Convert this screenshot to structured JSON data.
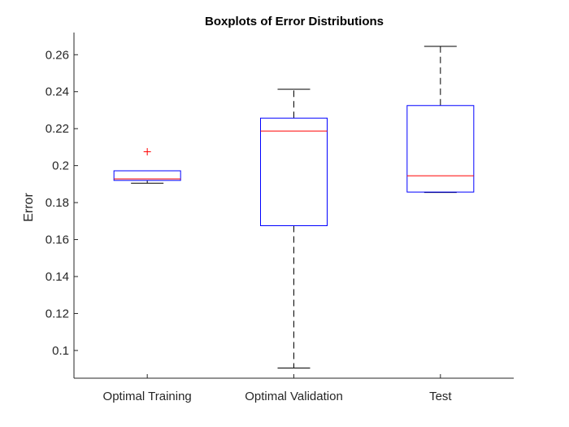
{
  "chart_data": {
    "type": "boxplot",
    "title": "Boxplots of Error Distributions",
    "xlabel": "",
    "ylabel": "Error",
    "ylim": [
      0.085,
      0.272
    ],
    "yticks": [
      0.1,
      0.12,
      0.14,
      0.16,
      0.18,
      0.2,
      0.22,
      0.24,
      0.26
    ],
    "ytick_labels": [
      "0.1",
      "0.12",
      "0.14",
      "0.16",
      "0.18",
      "0.2",
      "0.22",
      "0.24",
      "0.26"
    ],
    "grid": false,
    "categories": [
      "Optimal Training",
      "Optimal Validation",
      "Test"
    ],
    "boxes": [
      {
        "category": "Optimal Training",
        "whisker_low": 0.1905,
        "q1": 0.192,
        "median": 0.1928,
        "q3": 0.1972,
        "whisker_high": 0.1972,
        "outliers": [
          0.2075
        ]
      },
      {
        "category": "Optimal Validation",
        "whisker_low": 0.0905,
        "q1": 0.1675,
        "median": 0.2187,
        "q3": 0.2257,
        "whisker_high": 0.2413,
        "outliers": []
      },
      {
        "category": "Test",
        "whisker_low": 0.1855,
        "q1": 0.1857,
        "median": 0.1945,
        "q3": 0.2325,
        "whisker_high": 0.2645,
        "outliers": []
      }
    ],
    "colors": {
      "box": "#0000ff",
      "median": "#ff0000",
      "whisker": "#000000",
      "outlier": "#ff0000",
      "axis": "#262626"
    }
  }
}
